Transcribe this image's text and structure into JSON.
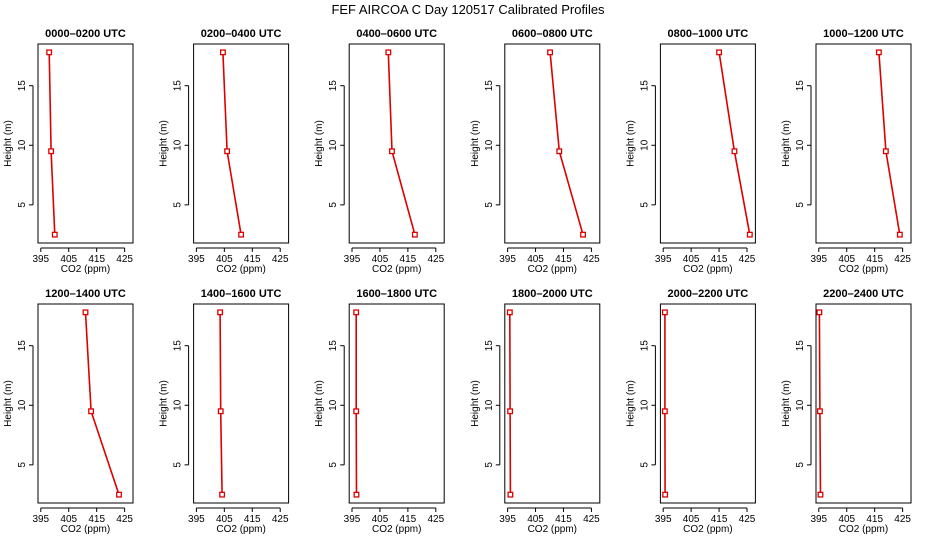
{
  "title": "FEF AIRCOA C  Day 120517  Calibrated Profiles",
  "chart_data": [
    {
      "type": "line",
      "title": "0000–0200 UTC",
      "xlabel": "CO2 (ppm)",
      "ylabel": "Height (m)",
      "xlim": [
        394,
        428
      ],
      "ylim": [
        1.8,
        18.5
      ],
      "xticks": [
        395,
        405,
        415,
        425
      ],
      "yticks": [
        5,
        10,
        15
      ],
      "x": [
        398.0,
        398.7,
        400.0
      ],
      "y": [
        17.8,
        9.5,
        2.5
      ],
      "xerr": [
        0.4,
        0.3,
        0.4
      ]
    },
    {
      "type": "line",
      "title": "0200–0400 UTC",
      "xlabel": "CO2 (ppm)",
      "ylabel": "Height (m)",
      "xlim": [
        394,
        428
      ],
      "ylim": [
        1.8,
        18.5
      ],
      "xticks": [
        395,
        405,
        415,
        425
      ],
      "yticks": [
        5,
        10,
        15
      ],
      "x": [
        404.5,
        406.0,
        411.0
      ],
      "y": [
        17.8,
        9.5,
        2.5
      ],
      "xerr": [
        0.4,
        0.3,
        0.4
      ]
    },
    {
      "type": "line",
      "title": "0400–0600 UTC",
      "xlabel": "CO2 (ppm)",
      "ylabel": "Height (m)",
      "xlim": [
        394,
        428
      ],
      "ylim": [
        1.8,
        18.5
      ],
      "xticks": [
        395,
        405,
        415,
        425
      ],
      "yticks": [
        5,
        10,
        15
      ],
      "x": [
        408.0,
        409.3,
        417.5
      ],
      "y": [
        17.8,
        9.5,
        2.5
      ],
      "xerr": [
        0.4,
        0.3,
        0.4
      ]
    },
    {
      "type": "line",
      "title": "0600–0800 UTC",
      "xlabel": "CO2 (ppm)",
      "ylabel": "Height (m)",
      "xlim": [
        394,
        428
      ],
      "ylim": [
        1.8,
        18.5
      ],
      "xticks": [
        395,
        405,
        415,
        425
      ],
      "yticks": [
        5,
        10,
        15
      ],
      "x": [
        410.2,
        413.5,
        422.0
      ],
      "y": [
        17.8,
        9.5,
        2.5
      ],
      "xerr": [
        0.4,
        0.3,
        0.4
      ]
    },
    {
      "type": "line",
      "title": "0800–1000 UTC",
      "xlabel": "CO2 (ppm)",
      "ylabel": "Height (m)",
      "xlim": [
        394,
        428
      ],
      "ylim": [
        1.8,
        18.5
      ],
      "xticks": [
        395,
        405,
        415,
        425
      ],
      "yticks": [
        5,
        10,
        15
      ],
      "x": [
        415.0,
        420.5,
        426.0
      ],
      "y": [
        17.8,
        9.5,
        2.5
      ],
      "xerr": [
        0.4,
        0.3,
        0.4
      ]
    },
    {
      "type": "line",
      "title": "1000–1200 UTC",
      "xlabel": "CO2 (ppm)",
      "ylabel": "Height (m)",
      "xlim": [
        394,
        428
      ],
      "ylim": [
        1.8,
        18.5
      ],
      "xticks": [
        395,
        405,
        415,
        425
      ],
      "yticks": [
        5,
        10,
        15
      ],
      "x": [
        416.5,
        419.0,
        424.0
      ],
      "y": [
        17.8,
        9.5,
        2.5
      ],
      "xerr": [
        0.4,
        0.3,
        0.4
      ]
    },
    {
      "type": "line",
      "title": "1200–1400 UTC",
      "xlabel": "CO2 (ppm)",
      "ylabel": "Height (m)",
      "xlim": [
        394,
        428
      ],
      "ylim": [
        1.8,
        18.5
      ],
      "xticks": [
        395,
        405,
        415,
        425
      ],
      "yticks": [
        5,
        10,
        15
      ],
      "x": [
        411.0,
        413.0,
        423.0
      ],
      "y": [
        17.8,
        9.5,
        2.5
      ],
      "xerr": [
        0.4,
        0.3,
        0.4
      ]
    },
    {
      "type": "line",
      "title": "1400–1600 UTC",
      "xlabel": "CO2 (ppm)",
      "ylabel": "Height (m)",
      "xlim": [
        394,
        428
      ],
      "ylim": [
        1.8,
        18.5
      ],
      "xticks": [
        395,
        405,
        415,
        425
      ],
      "yticks": [
        5,
        10,
        15
      ],
      "x": [
        403.5,
        403.7,
        404.2
      ],
      "y": [
        17.8,
        9.5,
        2.5
      ],
      "xerr": [
        0.4,
        0.3,
        0.4
      ]
    },
    {
      "type": "line",
      "title": "1600–1800 UTC",
      "xlabel": "CO2 (ppm)",
      "ylabel": "Height (m)",
      "xlim": [
        394,
        428
      ],
      "ylim": [
        1.8,
        18.5
      ],
      "xticks": [
        395,
        405,
        415,
        425
      ],
      "yticks": [
        5,
        10,
        15
      ],
      "x": [
        396.5,
        396.5,
        396.6
      ],
      "y": [
        17.8,
        9.5,
        2.5
      ],
      "xerr": [
        0.3,
        0.3,
        0.3
      ]
    },
    {
      "type": "line",
      "title": "1800–2000 UTC",
      "xlabel": "CO2 (ppm)",
      "ylabel": "Height (m)",
      "xlim": [
        394,
        428
      ],
      "ylim": [
        1.8,
        18.5
      ],
      "xticks": [
        395,
        405,
        415,
        425
      ],
      "yticks": [
        5,
        10,
        15
      ],
      "x": [
        395.8,
        395.9,
        396.0
      ],
      "y": [
        17.8,
        9.5,
        2.5
      ],
      "xerr": [
        0.4,
        0.3,
        0.3
      ]
    },
    {
      "type": "line",
      "title": "2000–2200 UTC",
      "xlabel": "CO2 (ppm)",
      "ylabel": "Height (m)",
      "xlim": [
        394,
        428
      ],
      "ylim": [
        1.8,
        18.5
      ],
      "xticks": [
        395,
        405,
        415,
        425
      ],
      "yticks": [
        5,
        10,
        15
      ],
      "x": [
        395.6,
        395.6,
        395.7
      ],
      "y": [
        17.8,
        9.5,
        2.5
      ],
      "xerr": [
        0.5,
        0.6,
        0.4
      ]
    },
    {
      "type": "line",
      "title": "2200–2400 UTC",
      "xlabel": "CO2 (ppm)",
      "ylabel": "Height (m)",
      "xlim": [
        394,
        428
      ],
      "ylim": [
        1.8,
        18.5
      ],
      "xticks": [
        395,
        405,
        415,
        425
      ],
      "yticks": [
        5,
        10,
        15
      ],
      "x": [
        395.2,
        395.4,
        395.6
      ],
      "y": [
        17.8,
        9.5,
        2.5
      ],
      "xerr": [
        0.3,
        0.3,
        0.3
      ]
    }
  ]
}
